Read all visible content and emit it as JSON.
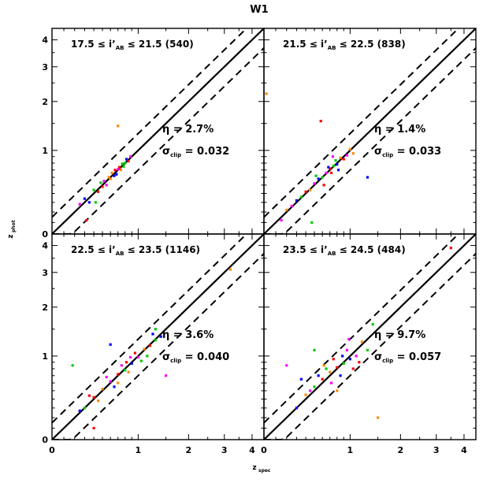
{
  "figure": {
    "title": "W1",
    "xlabel_main": "z",
    "xlabel_sub": "spec",
    "ylabel_main": "z",
    "ylabel_sub": "phot"
  },
  "chart_data": {
    "type": "scatter",
    "title": "W1",
    "xlabel": "z_spec",
    "ylabel": "z_phot",
    "axis_scale": "log(1+z)",
    "xlim": [
      0,
      4.5
    ],
    "ylim": [
      0,
      4.5
    ],
    "major_ticks": [
      0,
      1,
      2,
      3,
      4
    ],
    "reference_lines": [
      {
        "label": "z_phot = z_spec",
        "style": "solid"
      },
      {
        "label": "z_phot = z_spec ± 0.15(1+z_spec)",
        "style": "dashed"
      }
    ],
    "series_colors": [
      "#ff0000",
      "#00cc00",
      "#0000ff",
      "#ff00ff",
      "#ff8800"
    ],
    "panels": [
      {
        "position": "top-left",
        "mag_low": "17.5",
        "mag_high": "21.5",
        "count": "(540)",
        "eta": "2.7%",
        "sigma": "0.032",
        "points": [
          [
            0.72,
            0.74
          ],
          [
            0.8,
            0.8
          ],
          [
            0.65,
            0.62
          ],
          [
            0.7,
            0.71
          ],
          [
            0.58,
            0.6
          ],
          [
            0.85,
            0.83
          ],
          [
            0.76,
            0.79
          ],
          [
            0.68,
            0.64
          ],
          [
            0.52,
            0.55
          ],
          [
            0.62,
            0.66
          ],
          [
            0.45,
            0.42
          ],
          [
            0.4,
            0.44
          ],
          [
            0.35,
            0.3
          ],
          [
            0.55,
            0.5
          ],
          [
            0.6,
            0.58
          ],
          [
            0.66,
            0.7
          ],
          [
            0.78,
            0.75
          ],
          [
            0.82,
            0.86
          ],
          [
            0.88,
            0.9
          ],
          [
            0.74,
            0.7
          ],
          [
            0.5,
            0.48
          ],
          [
            0.48,
            0.53
          ],
          [
            0.3,
            0.34
          ],
          [
            0.25,
            0.28
          ],
          [
            0.7,
            1.45
          ],
          [
            0.32,
            0.12
          ],
          [
            0.42,
            0.3
          ]
        ]
      },
      {
        "position": "top-right",
        "mag_low": "21.5",
        "mag_high": "22.5",
        "count": "(838)",
        "eta": "1.4%",
        "sigma": "0.033",
        "points": [
          [
            0.7,
            0.72
          ],
          [
            0.75,
            0.76
          ],
          [
            0.8,
            0.78
          ],
          [
            0.65,
            0.66
          ],
          [
            0.85,
            0.88
          ],
          [
            0.9,
            0.86
          ],
          [
            0.6,
            0.6
          ],
          [
            0.55,
            0.58
          ],
          [
            0.5,
            0.52
          ],
          [
            0.45,
            0.44
          ],
          [
            0.4,
            0.42
          ],
          [
            0.35,
            0.36
          ],
          [
            0.3,
            0.32
          ],
          [
            0.25,
            0.26
          ],
          [
            0.2,
            0.22
          ],
          [
            0.72,
            0.66
          ],
          [
            0.78,
            0.84
          ],
          [
            0.68,
            0.74
          ],
          [
            0.95,
            0.92
          ],
          [
            1.0,
            1.02
          ],
          [
            0.62,
            0.5
          ],
          [
            0.52,
            0.62
          ],
          [
            0.82,
            0.7
          ],
          [
            0.74,
            0.9
          ],
          [
            0.02,
            2.2
          ],
          [
            0.58,
            1.55
          ],
          [
            0.47,
            0.1
          ],
          [
            1.3,
            0.6
          ],
          [
            0.15,
            0.12
          ],
          [
            1.05,
            0.95
          ]
        ]
      },
      {
        "position": "bottom-left",
        "mag_low": "22.5",
        "mag_high": "23.5",
        "count": "(1146)",
        "eta": "3.6%",
        "sigma": "0.040",
        "points": [
          [
            0.7,
            0.72
          ],
          [
            0.8,
            0.78
          ],
          [
            0.9,
            0.88
          ],
          [
            1.0,
            0.98
          ],
          [
            1.1,
            1.12
          ],
          [
            1.2,
            1.18
          ],
          [
            1.3,
            1.28
          ],
          [
            1.4,
            1.35
          ],
          [
            0.6,
            0.62
          ],
          [
            0.5,
            0.52
          ],
          [
            0.4,
            0.42
          ],
          [
            0.3,
            0.3
          ],
          [
            0.25,
            0.27
          ],
          [
            0.75,
            0.85
          ],
          [
            0.85,
            0.75
          ],
          [
            0.95,
            1.05
          ],
          [
            1.05,
            0.92
          ],
          [
            0.65,
            0.55
          ],
          [
            0.55,
            0.68
          ],
          [
            0.45,
            0.38
          ],
          [
            0.35,
            0.44
          ],
          [
            1.15,
            1.0
          ],
          [
            1.25,
            1.4
          ],
          [
            0.88,
            0.98
          ],
          [
            0.7,
            0.6
          ],
          [
            0.82,
            0.9
          ],
          [
            0.18,
            0.85
          ],
          [
            0.6,
            1.2
          ],
          [
            1.5,
            0.7
          ],
          [
            3.2,
            3.1
          ],
          [
            0.4,
            0.1
          ],
          [
            1.3,
            1.5
          ]
        ]
      },
      {
        "position": "bottom-right",
        "mag_low": "23.5",
        "mag_high": "24.5",
        "count": "(484)",
        "eta": "9.7%",
        "sigma": "0.057",
        "points": [
          [
            0.8,
            0.82
          ],
          [
            0.9,
            0.88
          ],
          [
            1.0,
            0.95
          ],
          [
            1.1,
            1.0
          ],
          [
            0.7,
            0.75
          ],
          [
            0.6,
            0.65
          ],
          [
            0.5,
            0.55
          ],
          [
            0.85,
            0.7
          ],
          [
            0.95,
            1.1
          ],
          [
            1.2,
            1.25
          ],
          [
            0.75,
            0.95
          ],
          [
            0.65,
            0.8
          ],
          [
            0.55,
            0.7
          ],
          [
            0.45,
            0.5
          ],
          [
            0.4,
            0.45
          ],
          [
            1.05,
            0.8
          ],
          [
            1.3,
            1.1
          ],
          [
            0.88,
            1.0
          ],
          [
            0.72,
            0.6
          ],
          [
            0.62,
            0.85
          ],
          [
            1.15,
            0.9
          ],
          [
            0.5,
            1.1
          ],
          [
            0.3,
            0.3
          ],
          [
            0.2,
            0.85
          ],
          [
            1.5,
            0.2
          ],
          [
            3.5,
            3.9
          ],
          [
            1.4,
            1.6
          ],
          [
            0.35,
            0.65
          ],
          [
            0.98,
            1.3
          ],
          [
            0.8,
            0.5
          ]
        ]
      }
    ]
  }
}
